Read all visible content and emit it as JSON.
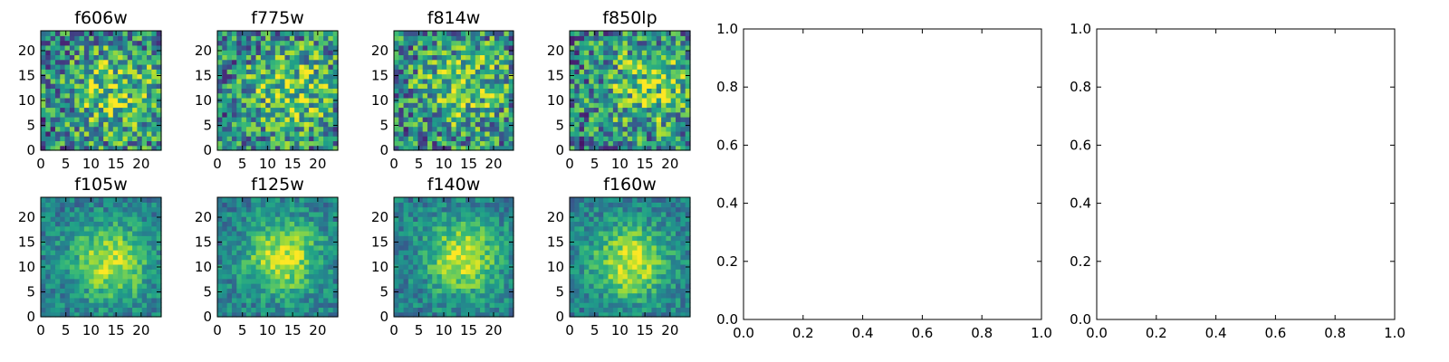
{
  "chart_data": [
    {
      "type": "heatmap",
      "title": "f606w",
      "xlim": [
        0,
        24
      ],
      "ylim": [
        0,
        24
      ],
      "xticks": [
        "0",
        "5",
        "10",
        "15",
        "20"
      ],
      "yticks": [
        "0",
        "5",
        "10",
        "15",
        "20"
      ],
      "colormap": "viridis",
      "peak": [
        15,
        12
      ]
    },
    {
      "type": "heatmap",
      "title": "f775w",
      "xlim": [
        0,
        24
      ],
      "ylim": [
        0,
        24
      ],
      "xticks": [
        "0",
        "5",
        "10",
        "15",
        "20"
      ],
      "yticks": [
        "0",
        "5",
        "10",
        "15",
        "20"
      ],
      "colormap": "viridis",
      "peak": [
        15,
        12
      ]
    },
    {
      "type": "heatmap",
      "title": "f814w",
      "xlim": [
        0,
        24
      ],
      "ylim": [
        0,
        24
      ],
      "xticks": [
        "0",
        "5",
        "10",
        "15",
        "20"
      ],
      "yticks": [
        "0",
        "5",
        "10",
        "15",
        "20"
      ],
      "colormap": "viridis",
      "peak": [
        14,
        13
      ]
    },
    {
      "type": "heatmap",
      "title": "f850lp",
      "xlim": [
        0,
        24
      ],
      "ylim": [
        0,
        24
      ],
      "xticks": [
        "0",
        "5",
        "10",
        "15",
        "20"
      ],
      "yticks": [
        "0",
        "5",
        "10",
        "15",
        "20"
      ],
      "colormap": "viridis",
      "peak": [
        16,
        13
      ]
    },
    {
      "type": "heatmap",
      "title": "f105w",
      "xlim": [
        0,
        24
      ],
      "ylim": [
        0,
        24
      ],
      "xticks": [
        "0",
        "5",
        "10",
        "15",
        "20"
      ],
      "yticks": [
        "0",
        "5",
        "10",
        "15",
        "20"
      ],
      "colormap": "viridis",
      "peak": [
        14,
        11
      ]
    },
    {
      "type": "heatmap",
      "title": "f125w",
      "xlim": [
        0,
        24
      ],
      "ylim": [
        0,
        24
      ],
      "xticks": [
        "0",
        "5",
        "10",
        "15",
        "20"
      ],
      "yticks": [
        "0",
        "5",
        "10",
        "15",
        "20"
      ],
      "colormap": "viridis",
      "peak": [
        13,
        12
      ]
    },
    {
      "type": "heatmap",
      "title": "f140w",
      "xlim": [
        0,
        24
      ],
      "ylim": [
        0,
        24
      ],
      "xticks": [
        "0",
        "5",
        "10",
        "15",
        "20"
      ],
      "yticks": [
        "0",
        "5",
        "10",
        "15",
        "20"
      ],
      "colormap": "viridis",
      "peak": [
        14,
        12
      ]
    },
    {
      "type": "heatmap",
      "title": "f160w",
      "xlim": [
        0,
        24
      ],
      "ylim": [
        0,
        24
      ],
      "xticks": [
        "0",
        "5",
        "10",
        "15",
        "20"
      ],
      "yticks": [
        "0",
        "5",
        "10",
        "15",
        "20"
      ],
      "colormap": "viridis",
      "peak": [
        12,
        11
      ]
    },
    {
      "type": "scatter",
      "title": "",
      "xlim": [
        0,
        1
      ],
      "ylim": [
        0,
        1
      ],
      "xticks": [
        "0.0",
        "0.2",
        "0.4",
        "0.6",
        "0.8",
        "1.0"
      ],
      "yticks": [
        "0.0",
        "0.2",
        "0.4",
        "0.6",
        "0.8",
        "1.0"
      ],
      "series": []
    },
    {
      "type": "scatter",
      "title": "",
      "xlim": [
        0,
        1
      ],
      "ylim": [
        0,
        1
      ],
      "xticks": [
        "0.0",
        "0.2",
        "0.4",
        "0.6",
        "0.8",
        "1.0"
      ],
      "yticks": [
        "0.0",
        "0.2",
        "0.4",
        "0.6",
        "0.8",
        "1.0"
      ],
      "series": []
    }
  ]
}
